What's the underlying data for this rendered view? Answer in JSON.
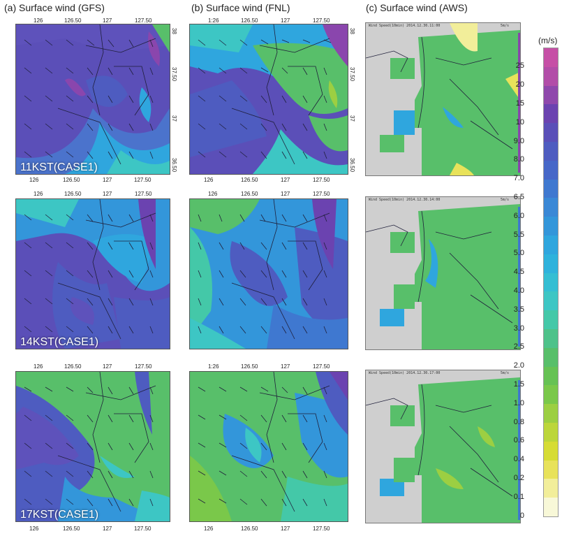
{
  "columns": [
    {
      "title": "(a) Surface wind (GFS)"
    },
    {
      "title": "(b) Surface wind (FNL)"
    },
    {
      "title": "(c) Surface wind (AWS)"
    }
  ],
  "panel_a_top_ticks": [
    "126",
    "126.50",
    "127",
    "127.50"
  ],
  "panel_b_top_ticks_row1": [
    "1:26",
    "126.50",
    "127",
    "127.50"
  ],
  "panel_bottom_ticks": [
    "126",
    "126.50",
    "127",
    "127.50"
  ],
  "panel_b_bottom_ticks_row1": [
    "126",
    "126.50",
    "127",
    "127.50"
  ],
  "panel_b_bottom_ticks_row3": [
    "126",
    "126.50",
    "127",
    "127.50"
  ],
  "panel_b_top_ticks_row3": [
    "1:26",
    "126.50",
    "127",
    "127.50"
  ],
  "lat_ticks": [
    "38",
    "37.50",
    "37",
    "36.50"
  ],
  "rows": [
    {
      "case_label": "11KST(CASE1)",
      "aws_header": "Wind Speed(10min) 2014.12.30.11:00",
      "aws_ref": "5m/s"
    },
    {
      "case_label": "14KST(CASE1)",
      "aws_header": "Wind Speed(10min) 2014.12.30.14:00",
      "aws_ref": "5m/s"
    },
    {
      "case_label": "17KST(CASE1)",
      "aws_header": "Wind Speed(10min) 2014.12.30.17:00",
      "aws_ref": "5m/s"
    }
  ],
  "colorbar": {
    "unit": "(m/s)",
    "labels": [
      "25",
      "20",
      "15",
      "10",
      "9.0",
      "8.0",
      "7.0",
      "6.5",
      "6.0",
      "5.5",
      "5.0",
      "4.5",
      "4.0",
      "3.5",
      "3.0",
      "2.5",
      "2.0",
      "1.5",
      "1.0",
      "0.8",
      "0.6",
      "0.4",
      "0.2",
      "0.1",
      "0"
    ],
    "colors": [
      "#c64fa6",
      "#b24da8",
      "#8f48ac",
      "#6b43b0",
      "#5a4fb8",
      "#4e5cc0",
      "#4667c8",
      "#3f78d0",
      "#3a88d6",
      "#3396da",
      "#2fa6de",
      "#2eb2dc",
      "#34bed3",
      "#3dc6c4",
      "#44c8a8",
      "#4ec28a",
      "#58bf6a",
      "#66c254",
      "#7ac84a",
      "#9ccf42",
      "#bcd63a",
      "#d6dc34",
      "#e8e25a",
      "#f2ee9a",
      "#f8f8d8"
    ]
  }
}
